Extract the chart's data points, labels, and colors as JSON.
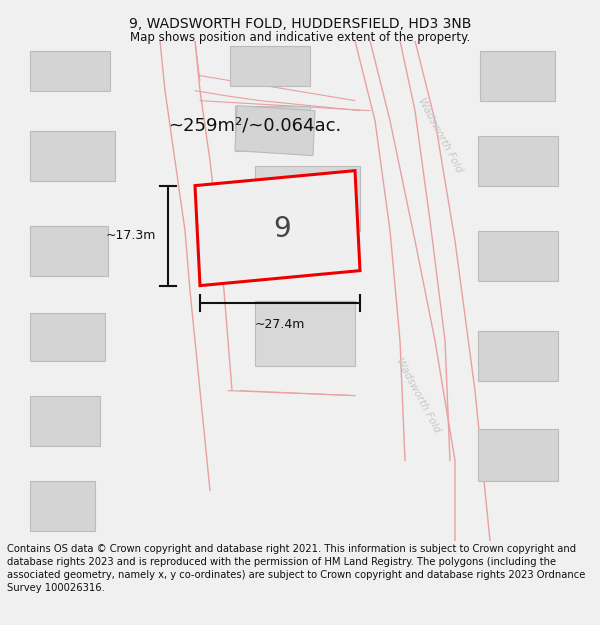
{
  "title": "9, WADSWORTH FOLD, HUDDERSFIELD, HD3 3NB",
  "subtitle": "Map shows position and indicative extent of the property.",
  "footer": "Contains OS data © Crown copyright and database right 2021. This information is subject to Crown copyright and database rights 2023 and is reproduced with the permission of HM Land Registry. The polygons (including the associated geometry, namely x, y co-ordinates) are subject to Crown copyright and database rights 2023 Ordnance Survey 100026316.",
  "area_label": "~259m²/~0.064ac.",
  "width_label": "~27.4m",
  "height_label": "~17.3m",
  "property_number": "9",
  "bg_color": "#f0f0f0",
  "map_bg": "#ffffff",
  "road_line_color": "#e8a0a0",
  "building_fill": "#d4d4d4",
  "building_edge": "#bbbbbb",
  "property_fill": "#f0efef",
  "property_edge": "#ee0000",
  "road_label_color": "#c8c8c8",
  "dim_color": "#111111",
  "title_fontsize": 10,
  "subtitle_fontsize": 8.5,
  "footer_fontsize": 7.2,
  "area_fontsize": 13,
  "number_fontsize": 20,
  "dim_fontsize": 9
}
